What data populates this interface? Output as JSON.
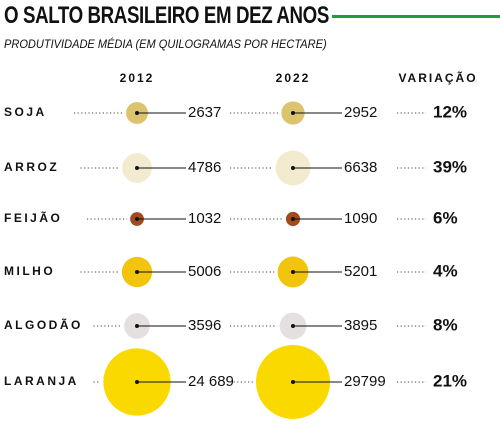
{
  "title": "O SALTO BRASILEIRO EM DEZ ANOS",
  "subtitle": "PRODUTIVIDADE MÉDIA (EM QUILOGRAMAS POR HECTARE)",
  "chart_data": {
    "type": "bubble-table",
    "columns": [
      "2012",
      "2022",
      "VARIAÇÃO"
    ],
    "rows": [
      {
        "crop": "SOJA",
        "v2012": 2637,
        "v2022": 2952,
        "label2012": "2637",
        "label2022": "2952",
        "change": "12%",
        "color": "#dcc46e"
      },
      {
        "crop": "ARROZ",
        "v2012": 4786,
        "v2022": 6638,
        "label2012": "4786",
        "label2022": "6638",
        "change": "39%",
        "color": "#f3ebcf"
      },
      {
        "crop": "FEIJÃO",
        "v2012": 1032,
        "v2022": 1090,
        "label2012": "1032",
        "label2022": "1090",
        "change": "6%",
        "color": "#a24a1c"
      },
      {
        "crop": "MILHO",
        "v2012": 5006,
        "v2022": 5201,
        "label2012": "5006",
        "label2022": "5201",
        "change": "4%",
        "color": "#f2c50c"
      },
      {
        "crop": "ALGODÃO",
        "v2012": 3596,
        "v2022": 3895,
        "label2012": "3596",
        "label2022": "3895",
        "change": "8%",
        "color": "#e4e0e0"
      },
      {
        "crop": "LARANJA",
        "v2012": 24689,
        "v2022": 29799,
        "label2012": "24 689",
        "label2022": "29799",
        "change": "21%",
        "color": "#fad900"
      }
    ]
  },
  "colors": {
    "accent": "#1e9e3a"
  }
}
